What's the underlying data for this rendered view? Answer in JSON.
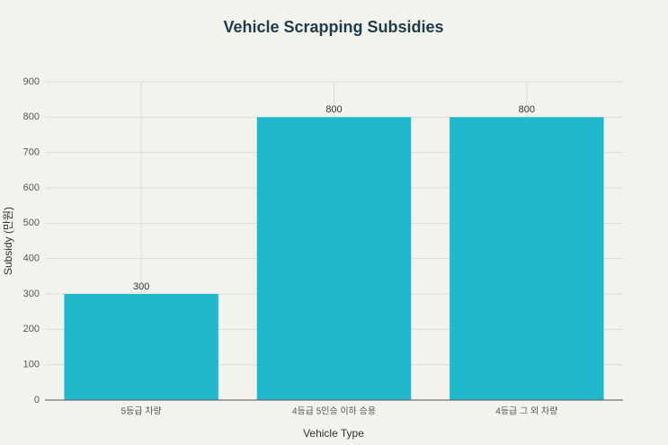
{
  "chart_data": {
    "type": "bar",
    "title": "Vehicle Scrapping Subsidies",
    "x_label": "Vehicle Type",
    "y_label": "Subsidy (만원)",
    "categories": [
      "5등급 차량",
      "4등급 5인승 이하 승용",
      "4등급 그 외 차량"
    ],
    "values": [
      300,
      800,
      800
    ],
    "color": "#21b8cc",
    "ylim": [
      0,
      900
    ],
    "yticks": [
      0,
      100,
      200,
      300,
      400,
      500,
      600,
      700,
      800,
      900
    ],
    "grid": true
  }
}
